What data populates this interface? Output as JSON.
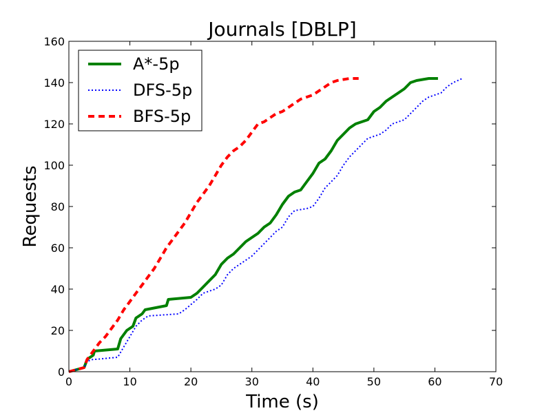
{
  "chart_data": {
    "type": "line",
    "title": "Journals [DBLP]",
    "xlabel": "Time (s)",
    "ylabel": "Requests",
    "xlim": [
      0,
      70
    ],
    "ylim": [
      0,
      160
    ],
    "xticks": [
      0,
      10,
      20,
      30,
      40,
      50,
      60,
      70
    ],
    "yticks": [
      0,
      20,
      40,
      60,
      80,
      100,
      120,
      140,
      160
    ],
    "grid": false,
    "legend_position": "top-left",
    "series": [
      {
        "name": "A*-5p",
        "color": "#008000",
        "style": "solid",
        "x": [
          0,
          2.5,
          3,
          4,
          4.2,
          8,
          8.5,
          9.5,
          10.5,
          11,
          12,
          12.5,
          16,
          16.3,
          20,
          21,
          22,
          23,
          24,
          25,
          26,
          27,
          28,
          29,
          30,
          31,
          32,
          33,
          34,
          35,
          36,
          37,
          38,
          39,
          40,
          41,
          42,
          43,
          44,
          45,
          46,
          47,
          48,
          49,
          50,
          51,
          52,
          53,
          54,
          55,
          56,
          57,
          58,
          59,
          60.5
        ],
        "y": [
          0,
          2,
          6,
          8,
          10,
          11,
          16,
          20,
          22,
          26,
          28,
          30,
          32,
          35,
          36,
          38,
          41,
          44,
          47,
          52,
          55,
          57,
          60,
          63,
          65,
          67,
          70,
          72,
          76,
          81,
          85,
          87,
          88,
          92,
          96,
          101,
          103,
          107,
          112,
          115,
          118,
          120,
          121,
          122,
          126,
          128,
          131,
          133,
          135,
          137,
          140,
          141,
          141.5,
          142,
          142
        ]
      },
      {
        "name": "DFS-5p",
        "color": "#0000ff",
        "style": "dotted",
        "x": [
          0,
          2.5,
          3,
          4,
          4.5,
          8,
          9,
          10,
          11,
          12,
          13,
          18,
          19,
          21,
          22,
          24,
          25,
          26,
          27,
          28,
          29,
          30,
          31,
          32,
          33,
          34,
          35,
          36,
          37,
          38,
          39,
          40,
          41,
          42,
          43,
          44,
          45,
          46,
          47,
          48,
          49,
          50,
          51,
          52,
          53,
          54,
          55,
          56,
          57,
          58,
          59,
          61,
          62,
          63,
          64.5
        ],
        "y": [
          0,
          2,
          5,
          6,
          6,
          7,
          12,
          17,
          22,
          25,
          27,
          28,
          30,
          35,
          38,
          40,
          42,
          47,
          50,
          52,
          54,
          56,
          59,
          62,
          65,
          68,
          70,
          75,
          78,
          78.5,
          79,
          80,
          84,
          89,
          92,
          95,
          100,
          104,
          107,
          110,
          113,
          114,
          115,
          117,
          120,
          121,
          122,
          125,
          128,
          131,
          133,
          135,
          138,
          140,
          142
        ]
      },
      {
        "name": "BFS-5p",
        "color": "#ff0000",
        "style": "dashed",
        "x": [
          0,
          2.5,
          3,
          4,
          5,
          6,
          7,
          8,
          9,
          10,
          11,
          12,
          13,
          14,
          15,
          16,
          17,
          18,
          19,
          20,
          21,
          22,
          23,
          24,
          25,
          26,
          27,
          28,
          29,
          30,
          31,
          32,
          33,
          34,
          35,
          36,
          37,
          38,
          39,
          40,
          41,
          42,
          43,
          44,
          45,
          46,
          47.5
        ],
        "y": [
          0,
          2,
          6,
          10,
          14,
          17,
          21,
          25,
          30,
          34,
          38,
          42,
          46,
          50,
          55,
          60,
          64,
          68,
          72,
          77,
          82,
          86,
          90,
          95,
          100,
          104,
          107,
          109,
          112,
          116,
          120,
          121,
          123,
          125,
          126,
          128,
          130,
          132,
          133,
          134,
          136,
          138,
          140,
          141,
          141.5,
          142,
          142
        ]
      }
    ]
  }
}
